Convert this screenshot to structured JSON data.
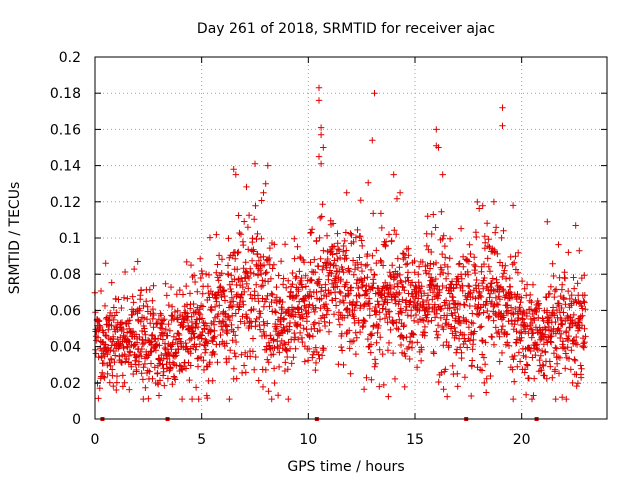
{
  "chart_data": {
    "type": "scatter",
    "title": "Day 261 of 2018, SRMTID for receiver ajac",
    "xlabel": "GPS time / hours",
    "ylabel": "SRMTID / TECUs",
    "xlim": [
      0,
      24
    ],
    "ylim": [
      0,
      0.2
    ],
    "x_ticks": [
      0,
      5,
      10,
      15,
      20
    ],
    "x_tick_labels": [
      "0",
      "5",
      "10",
      "15",
      "20"
    ],
    "y_ticks": [
      0,
      0.02,
      0.04,
      0.06,
      0.08,
      0.1,
      0.12,
      0.14,
      0.16,
      0.18,
      0.2
    ],
    "y_tick_labels": [
      "0",
      "0.02",
      "0.04",
      "0.06",
      "0.08",
      "0.1",
      "0.12",
      "0.14",
      "0.16",
      "0.18",
      "0.2"
    ],
    "grid": true,
    "marker": "+",
    "color": "#e00000",
    "data_gaps_at_hours": [
      0.35,
      3.4,
      10.4,
      17.4,
      20.7
    ],
    "density_profile": [
      {
        "x": 0.0,
        "center": 0.04,
        "spread": 0.012
      },
      {
        "x": 1.0,
        "center": 0.043,
        "spread": 0.013
      },
      {
        "x": 2.0,
        "center": 0.044,
        "spread": 0.014
      },
      {
        "x": 3.0,
        "center": 0.04,
        "spread": 0.012
      },
      {
        "x": 4.0,
        "center": 0.042,
        "spread": 0.013
      },
      {
        "x": 5.0,
        "center": 0.05,
        "spread": 0.015
      },
      {
        "x": 6.0,
        "center": 0.06,
        "spread": 0.02
      },
      {
        "x": 7.0,
        "center": 0.07,
        "spread": 0.022
      },
      {
        "x": 8.0,
        "center": 0.065,
        "spread": 0.024
      },
      {
        "x": 9.0,
        "center": 0.05,
        "spread": 0.015
      },
      {
        "x": 10.0,
        "center": 0.062,
        "spread": 0.018
      },
      {
        "x": 11.0,
        "center": 0.075,
        "spread": 0.02
      },
      {
        "x": 12.0,
        "center": 0.068,
        "spread": 0.02
      },
      {
        "x": 13.0,
        "center": 0.066,
        "spread": 0.019
      },
      {
        "x": 14.0,
        "center": 0.065,
        "spread": 0.02
      },
      {
        "x": 15.0,
        "center": 0.058,
        "spread": 0.016
      },
      {
        "x": 16.0,
        "center": 0.065,
        "spread": 0.02
      },
      {
        "x": 17.0,
        "center": 0.058,
        "spread": 0.018
      },
      {
        "x": 18.0,
        "center": 0.066,
        "spread": 0.02
      },
      {
        "x": 19.0,
        "center": 0.07,
        "spread": 0.022
      },
      {
        "x": 20.0,
        "center": 0.052,
        "spread": 0.016
      },
      {
        "x": 21.0,
        "center": 0.045,
        "spread": 0.014
      },
      {
        "x": 22.0,
        "center": 0.048,
        "spread": 0.015
      },
      {
        "x": 23.0,
        "center": 0.055,
        "spread": 0.016
      }
    ],
    "notable_points": [
      {
        "x": 10.5,
        "y": 0.183
      },
      {
        "x": 10.5,
        "y": 0.176
      },
      {
        "x": 10.6,
        "y": 0.161
      },
      {
        "x": 10.6,
        "y": 0.157
      },
      {
        "x": 10.7,
        "y": 0.15
      },
      {
        "x": 10.5,
        "y": 0.145
      },
      {
        "x": 10.6,
        "y": 0.141
      },
      {
        "x": 13.1,
        "y": 0.18
      },
      {
        "x": 13.0,
        "y": 0.154
      },
      {
        "x": 19.1,
        "y": 0.172
      },
      {
        "x": 19.1,
        "y": 0.162
      },
      {
        "x": 16.0,
        "y": 0.16
      },
      {
        "x": 16.0,
        "y": 0.151
      },
      {
        "x": 16.1,
        "y": 0.15
      },
      {
        "x": 7.5,
        "y": 0.141
      },
      {
        "x": 8.1,
        "y": 0.14
      },
      {
        "x": 6.5,
        "y": 0.138
      },
      {
        "x": 6.6,
        "y": 0.135
      },
      {
        "x": 14.0,
        "y": 0.135
      },
      {
        "x": 16.3,
        "y": 0.135
      },
      {
        "x": 8.0,
        "y": 0.13
      },
      {
        "x": 7.9,
        "y": 0.125
      },
      {
        "x": 11.8,
        "y": 0.125
      },
      {
        "x": 14.3,
        "y": 0.125
      },
      {
        "x": 18.7,
        "y": 0.12
      },
      {
        "x": 19.6,
        "y": 0.118
      },
      {
        "x": 21.2,
        "y": 0.109
      },
      {
        "x": 0.5,
        "y": 0.086
      },
      {
        "x": 1.0,
        "y": 0.016
      },
      {
        "x": 3.0,
        "y": 0.013
      },
      {
        "x": 6.3,
        "y": 0.011
      },
      {
        "x": 21.9,
        "y": 0.012
      },
      {
        "x": 22.7,
        "y": 0.093
      },
      {
        "x": 4.5,
        "y": 0.085
      },
      {
        "x": 2.0,
        "y": 0.087
      },
      {
        "x": 17.0,
        "y": 0.018
      }
    ]
  }
}
